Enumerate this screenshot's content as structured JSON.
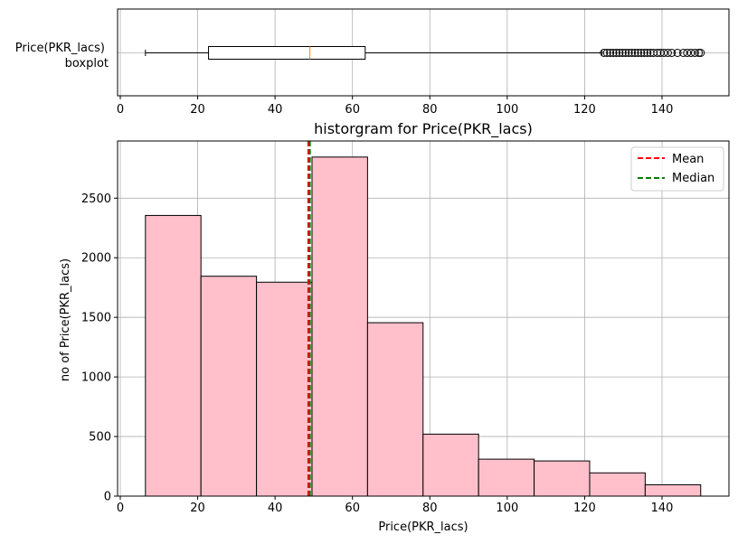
{
  "chart_data": [
    {
      "type": "boxplot",
      "ylabel_line1": "Price(PKR_lacs)",
      "ylabel_line2": "boxplot",
      "xlim": [
        -0.7,
        157.3
      ],
      "xticks": [
        0,
        20,
        40,
        60,
        80,
        100,
        120,
        140
      ],
      "grid": true,
      "box": {
        "whisker_low": 6.5,
        "q1": 22.8,
        "median": 49.0,
        "q3": 63.3,
        "whisker_high": 124.5
      },
      "outliers": [
        125.0,
        125.8,
        126.6,
        127.4,
        128.2,
        129.0,
        129.8,
        130.6,
        131.4,
        132.2,
        133.0,
        133.8,
        134.6,
        135.4,
        136.2,
        137.0,
        137.8,
        138.8,
        139.6,
        140.5,
        141.5,
        142.5,
        144.0,
        145.5,
        146.5,
        147.5,
        148.5,
        149.5,
        150.0
      ]
    },
    {
      "type": "bar",
      "title": "historgram for Price(PKR_lacs)",
      "xlabel": "Price(PKR_lacs)",
      "ylabel": "no of Price(PKR_lacs)",
      "xlim": [
        -0.7,
        157.3
      ],
      "ylim": [
        0,
        2980
      ],
      "xticks": [
        0,
        20,
        40,
        60,
        80,
        100,
        120,
        140
      ],
      "yticks": [
        0,
        500,
        1000,
        1500,
        2000,
        2500
      ],
      "grid": true,
      "bin_edges": [
        6.5,
        20.85,
        35.2,
        49.55,
        63.9,
        78.25,
        92.6,
        106.95,
        121.3,
        135.65,
        150.0
      ],
      "counts": [
        2355,
        1845,
        1795,
        2845,
        1455,
        520,
        310,
        295,
        195,
        95
      ],
      "bar_color": "#ffc0cb",
      "mean": 48.6,
      "median": 49.0,
      "mean_color": "#ff0000",
      "median_color": "#008000",
      "legend_position": "upper right",
      "legend": [
        "Mean",
        "Median"
      ]
    }
  ]
}
